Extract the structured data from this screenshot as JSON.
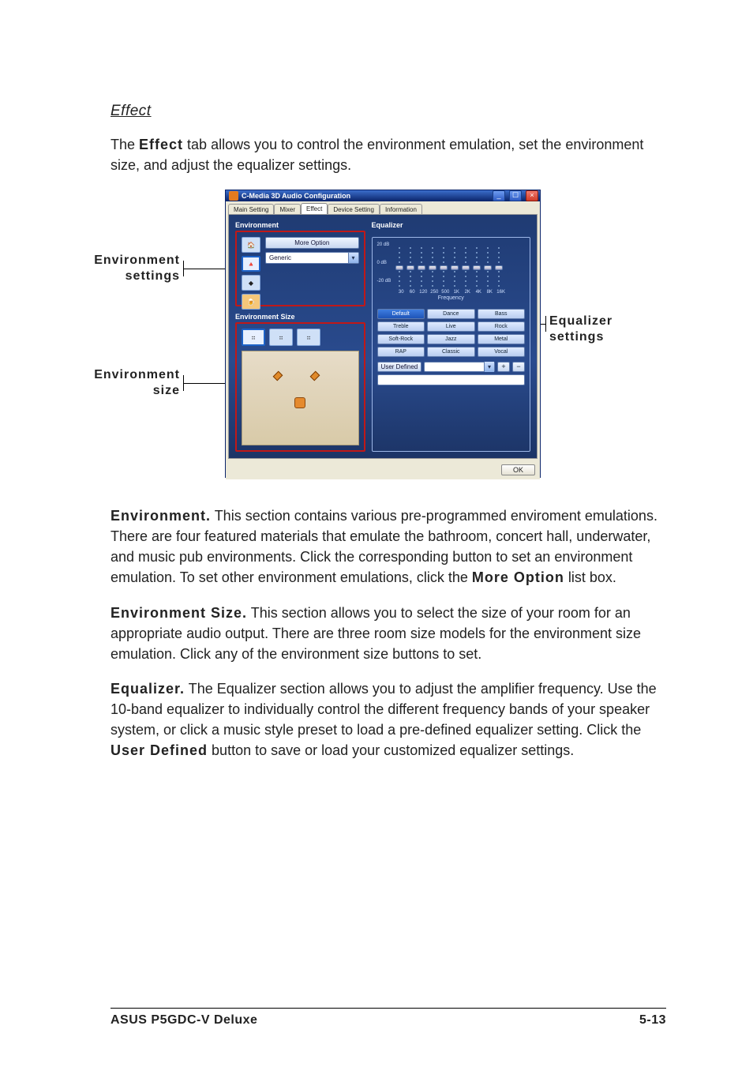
{
  "section_title": "Effect",
  "intro": {
    "pre": "The ",
    "bold": "Effect",
    "post": " tab allows you to control the environment emulation, set the environment size, and adjust the equalizer settings."
  },
  "callouts": {
    "env_settings_l1": "Environment",
    "env_settings_l2": "settings",
    "env_size_l1": "Environment",
    "env_size_l2": "size",
    "eq_l1": "Equalizer",
    "eq_l2": "settings"
  },
  "window": {
    "title": "C-Media 3D Audio Configuration",
    "tabs": [
      "Main Setting",
      "Mixer",
      "Effect",
      "Device Setting",
      "Information"
    ],
    "active_tab": 2,
    "env_label": "Environment",
    "more_option": "More Option",
    "env_combo": "Generic",
    "env_size_label": "Environment Size",
    "eq_label": "Equalizer",
    "eq_y": [
      "20 dB",
      "0 dB",
      "-20 dB"
    ],
    "eq_x": [
      "30",
      "60",
      "120",
      "250",
      "500",
      "1K",
      "2K",
      "4K",
      "8K",
      "16K"
    ],
    "eq_freq_label": "Frequency",
    "eq_slider_values": [
      0.5,
      0.5,
      0.5,
      0.5,
      0.5,
      0.5,
      0.5,
      0.5,
      0.5,
      0.5
    ],
    "presets": [
      "Default",
      "Dance",
      "Bass",
      "Treble",
      "Live",
      "Rock",
      "Soft-Rock",
      "Jazz",
      "Metal",
      "RAP",
      "Classic",
      "Vocal"
    ],
    "preset_selected": 0,
    "user_defined": "User  Defined",
    "plus": "+",
    "minus": "−",
    "ok": "OK",
    "min": "_",
    "max": "☐",
    "close": "×"
  },
  "body": {
    "env_b": "Environment.",
    "env_t": " This section contains various pre-programmed enviroment emulations. There are four featured materials that emulate the bathroom, concert hall, underwater, and music pub environments. Click the corresponding button to set an environment emulation. To set other environment emulations, click the ",
    "env_more": "More Option",
    "env_post": " list box.",
    "size_b": "Environment Size.",
    "size_t": " This section allows you to select the size of your room for an appropriate audio output. There are three room size models for the environment size emulation. Click any of the environment size buttons to set.",
    "eq_b": "Equalizer.",
    "eq_t": " The Equalizer section allows you to adjust the amplifier frequency. Use the 10-band equalizer to individually control the different frequency bands of your speaker system, or click a music style preset to load a pre-defined equalizer setting. Click the ",
    "eq_ud": "User Defined",
    "eq_post": " button to save or load your customized equalizer settings."
  },
  "footer": {
    "product": "ASUS P5GDC-V Deluxe",
    "page": "5-13"
  },
  "colors": {
    "titlebar_start": "#3b6ecb",
    "titlebar_end": "#0a246a",
    "pane_bg_start": "#1f3b73",
    "pane_bg_end": "#1c3466",
    "red": "#c01818",
    "xp_bg": "#ece9d8"
  }
}
